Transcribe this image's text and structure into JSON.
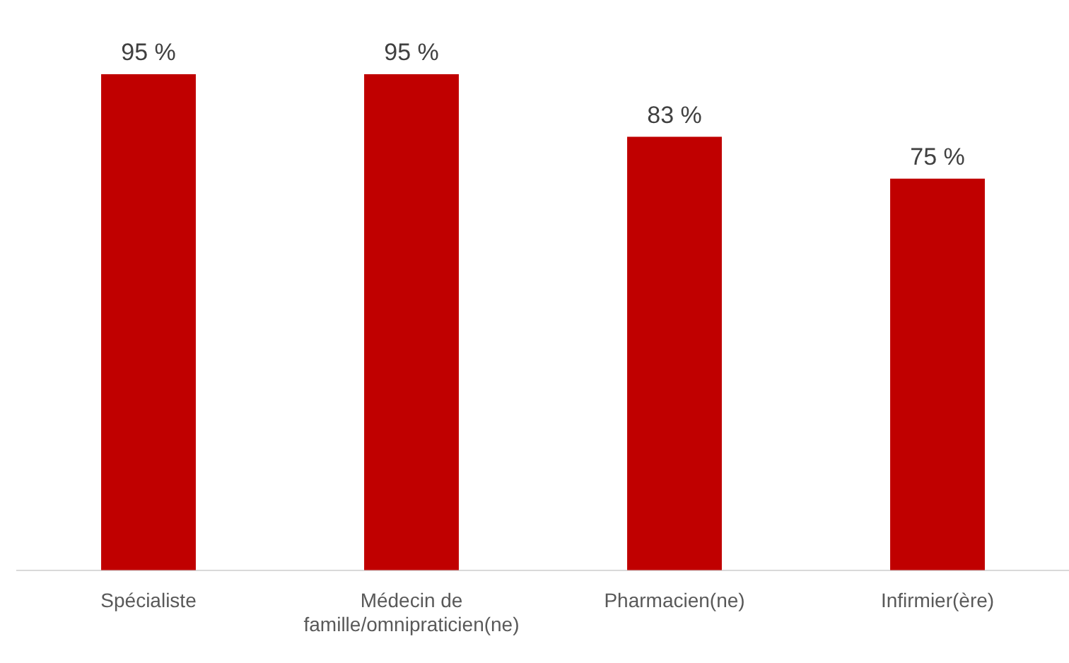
{
  "chart_data": {
    "type": "bar",
    "categories": [
      "Spécialiste",
      "Médecin de famille/omnipraticien(ne)",
      "Pharmacien(ne)",
      "Infirmier(ère)"
    ],
    "values": [
      95,
      95,
      83,
      75
    ],
    "value_labels": [
      "95 %",
      "95 %",
      "83 %",
      "75 %"
    ],
    "color": "#c00000",
    "grid": false,
    "legend": false
  }
}
